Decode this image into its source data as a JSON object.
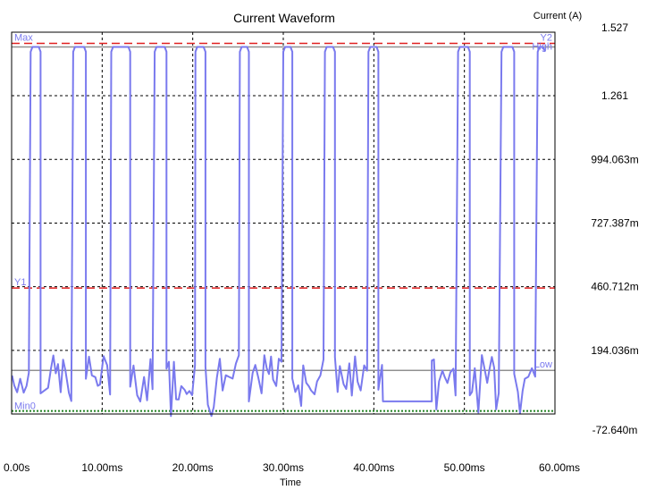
{
  "chart_data": {
    "type": "line",
    "title": "Current Waveform",
    "xlabel": "Time",
    "ylabel": "Current (A)",
    "xlim": [
      0,
      60
    ],
    "ylim": [
      -0.07264,
      1.527
    ],
    "grid": true,
    "x_ticks": [
      0,
      10,
      20,
      30,
      40,
      50,
      60
    ],
    "x_tick_labels": [
      "0.00s",
      "10.00ms",
      "20.00ms",
      "30.00ms",
      "40.00ms",
      "50.00ms",
      "60.00ms"
    ],
    "y_ticks": [
      1.527,
      1.261,
      0.994063,
      0.727387,
      0.460712,
      0.194036,
      -0.07264
    ],
    "y_tick_labels": [
      "1.527",
      "1.261",
      "994.063m",
      "727.387m",
      "460.712m",
      "194.036m",
      "-72.640m"
    ],
    "markers": [
      {
        "label": "Max",
        "value": 1.48,
        "color": "#e02020",
        "style": "dashed",
        "side": "left"
      },
      {
        "label": "Y2",
        "value": 1.48,
        "color": "#e02020",
        "style": "dashed",
        "side": "right"
      },
      {
        "label": "High",
        "value": 1.465,
        "color": "#909090",
        "style": "solid",
        "side": "right"
      },
      {
        "label": "Y1",
        "value": 0.455,
        "color": "#e02020",
        "style": "dashed",
        "side": "left"
      },
      {
        "label": "Low",
        "value": 0.11,
        "color": "#909090",
        "style": "solid",
        "side": "right"
      },
      {
        "label": "Min0",
        "value": -0.06,
        "color": "#208020",
        "style": "dotted",
        "side": "left"
      }
    ],
    "series": [
      {
        "color": "#7a7aee",
        "high": 1.465,
        "base": 0.09,
        "x_start": 0.05,
        "x_end": 58.9,
        "pulses": [
          [
            2.1,
            3.2
          ],
          [
            6.8,
            8.2
          ],
          [
            11.0,
            13.1
          ],
          [
            15.8,
            17.1
          ],
          [
            20.3,
            21.4
          ],
          [
            25.2,
            26.2
          ],
          [
            30.0,
            31.0
          ],
          [
            34.6,
            35.7
          ],
          [
            39.4,
            40.5
          ],
          [
            49.3,
            50.6
          ],
          [
            54.1,
            55.5
          ],
          [
            58.1,
            58.9
          ]
        ],
        "flat_segments": [
          [
            41.0,
            46.4,
            -0.02
          ]
        ]
      }
    ]
  }
}
